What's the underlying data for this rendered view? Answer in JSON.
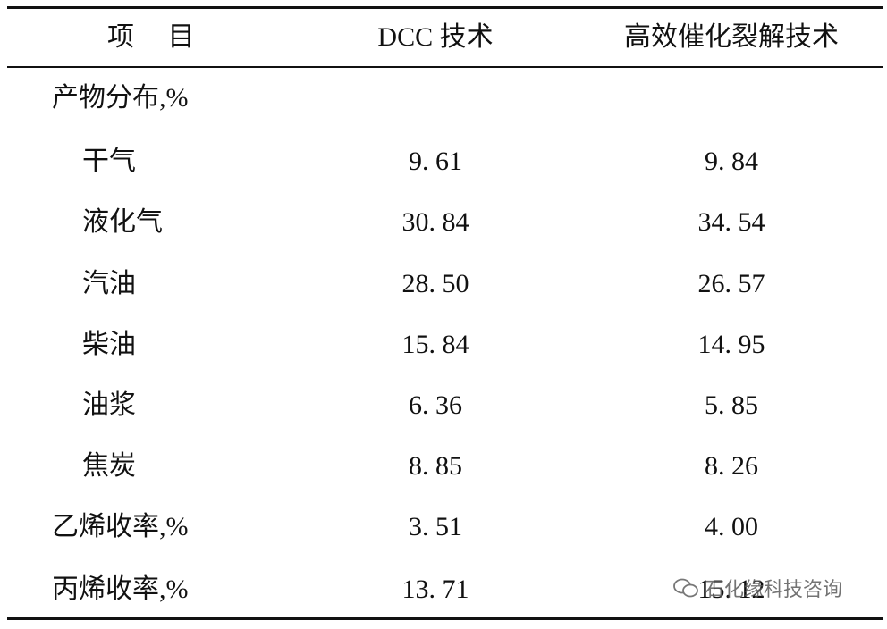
{
  "table": {
    "header": [
      "项　 目",
      "DCC 技术",
      "高效催化裂解技术"
    ],
    "rows": [
      [
        "产物分布,%"
      ],
      [
        "干气",
        "9. 61",
        "9. 84"
      ],
      [
        "液化气",
        "30. 84",
        "34. 54"
      ],
      [
        "汽油",
        "28. 50",
        "26. 57"
      ],
      [
        "柴油",
        "15. 84",
        "14. 95"
      ],
      [
        "油浆",
        "6. 36",
        "5. 85"
      ],
      [
        "焦炭",
        "8. 85",
        "8. 26"
      ],
      [
        "乙烯收率,%",
        "3. 51",
        "4. 00"
      ],
      [
        "丙烯收率,%",
        "13. 71",
        "15. 12"
      ]
    ]
  },
  "watermark": "石化缘科技咨询"
}
